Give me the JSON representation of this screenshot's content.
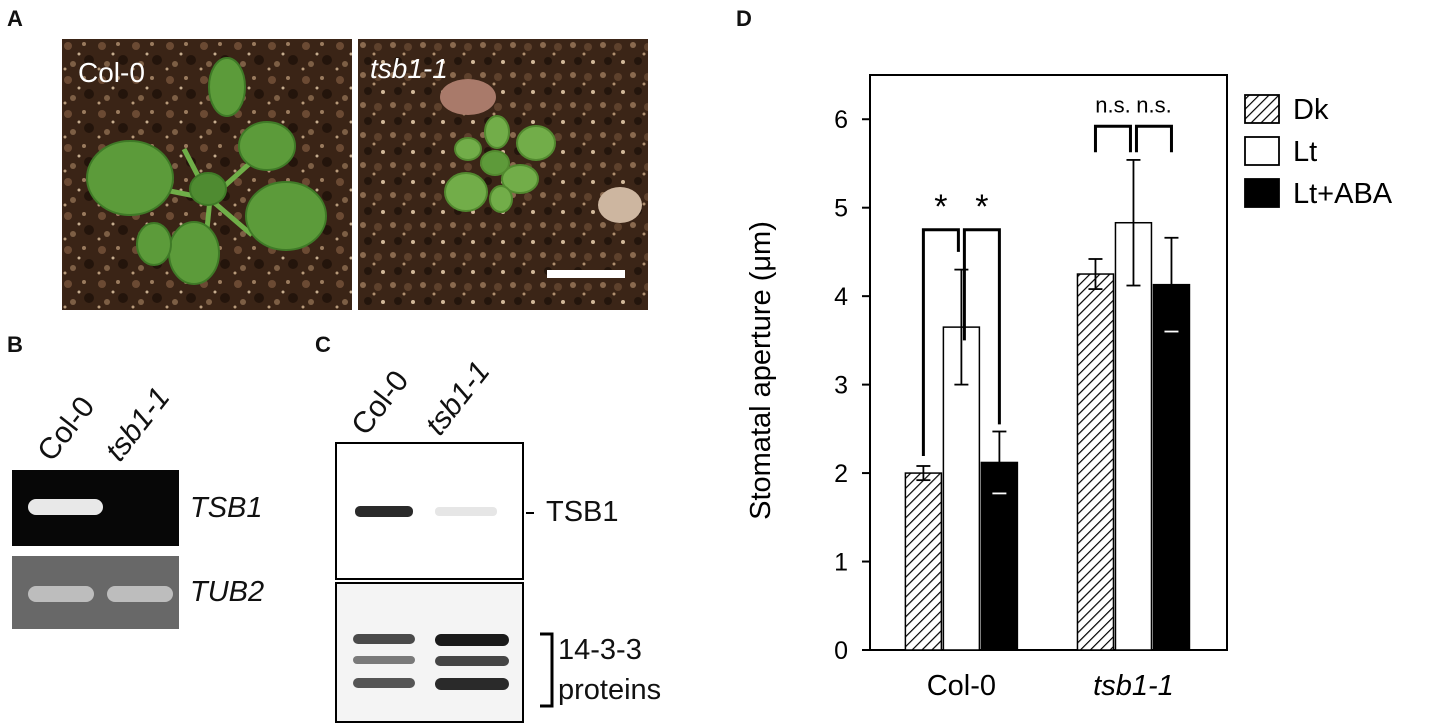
{
  "panels": {
    "a": {
      "letter": "A",
      "left_label": "Col-0",
      "right_label": "tsb1-1"
    },
    "b": {
      "letter": "B",
      "lanes": [
        "Col-0",
        "tsb1-1"
      ],
      "genes": [
        "TSB1",
        "TUB2"
      ]
    },
    "c": {
      "letter": "C",
      "lanes": [
        "Col-0",
        "tsb1-1"
      ],
      "band_label": "TSB1",
      "loading_label_line1": "14-3-3",
      "loading_label_line2": "proteins"
    },
    "d": {
      "letter": "D",
      "sig_star": "*",
      "sig_ns": "n.s."
    }
  },
  "chart_data": {
    "type": "bar",
    "categories": [
      "Col-0",
      "tsb1-1"
    ],
    "series": [
      {
        "name": "Dk",
        "values": [
          2.0,
          4.25
        ],
        "errors": [
          0.08,
          0.17
        ],
        "fill": "hatched"
      },
      {
        "name": "Lt",
        "values": [
          3.65,
          4.83
        ],
        "errors": [
          0.65,
          0.71
        ],
        "fill": "#ffffff"
      },
      {
        "name": "Lt+ABA",
        "values": [
          2.12,
          4.13
        ],
        "errors": [
          0.35,
          0.53
        ],
        "fill": "#000000"
      }
    ],
    "ylabel": "Stomatal aperture (μm)",
    "ylim": [
      0,
      6.5
    ],
    "yticks": [
      "0",
      "1",
      "2",
      "3",
      "4",
      "5",
      "6"
    ],
    "legend_position": "right",
    "significance": [
      {
        "category": "Col-0",
        "pairs": [
          "Dk-Lt",
          "Lt-Lt+ABA"
        ],
        "marks": [
          "*",
          "*"
        ]
      },
      {
        "category": "tsb1-1",
        "pairs": [
          "Dk-Lt",
          "Lt-Lt+ABA"
        ],
        "marks": [
          "n.s.",
          "n.s."
        ]
      }
    ]
  }
}
